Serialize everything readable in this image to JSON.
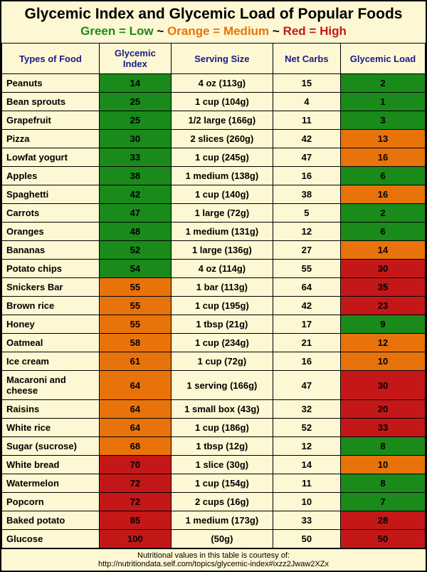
{
  "title": "Glycemic Index and Glycemic Load of Popular Foods",
  "legend": {
    "green": "Green = Low",
    "orange": "Orange = Medium",
    "red": "Red = High",
    "sep": "~"
  },
  "columns": [
    {
      "label": "Types of Food",
      "width": "23%"
    },
    {
      "label": "Glycemic Index",
      "width": "17%"
    },
    {
      "label": "Serving Size",
      "width": "24%"
    },
    {
      "label": "Net Carbs",
      "width": "16%"
    },
    {
      "label": "Glycemic Load",
      "width": "20%"
    }
  ],
  "colors": {
    "green": "#1a8a1a",
    "orange": "#e8730b",
    "red": "#c41818",
    "cream": "#fdf8d3",
    "header_text": "#1a1a8a"
  },
  "rows": [
    {
      "name": "Peanuts",
      "gi": 14,
      "gi_color": "green",
      "serving": "4 oz (113g)",
      "carbs": 15,
      "gl": 2,
      "gl_color": "green"
    },
    {
      "name": "Bean sprouts",
      "gi": 25,
      "gi_color": "green",
      "serving": "1 cup (104g)",
      "carbs": 4,
      "gl": 1,
      "gl_color": "green"
    },
    {
      "name": "Grapefruit",
      "gi": 25,
      "gi_color": "green",
      "serving": "1/2 large (166g)",
      "carbs": 11,
      "gl": 3,
      "gl_color": "green"
    },
    {
      "name": "Pizza",
      "gi": 30,
      "gi_color": "green",
      "serving": "2 slices (260g)",
      "carbs": 42,
      "gl": 13,
      "gl_color": "orange"
    },
    {
      "name": "Lowfat yogurt",
      "gi": 33,
      "gi_color": "green",
      "serving": "1 cup (245g)",
      "carbs": 47,
      "gl": 16,
      "gl_color": "orange"
    },
    {
      "name": "Apples",
      "gi": 38,
      "gi_color": "green",
      "serving": "1 medium (138g)",
      "carbs": 16,
      "gl": 6,
      "gl_color": "green"
    },
    {
      "name": "Spaghetti",
      "gi": 42,
      "gi_color": "green",
      "serving": "1 cup (140g)",
      "carbs": 38,
      "gl": 16,
      "gl_color": "orange"
    },
    {
      "name": "Carrots",
      "gi": 47,
      "gi_color": "green",
      "serving": "1 large (72g)",
      "carbs": 5,
      "gl": 2,
      "gl_color": "green"
    },
    {
      "name": "Oranges",
      "gi": 48,
      "gi_color": "green",
      "serving": "1 medium (131g)",
      "carbs": 12,
      "gl": 6,
      "gl_color": "green"
    },
    {
      "name": "Bananas",
      "gi": 52,
      "gi_color": "green",
      "serving": "1 large (136g)",
      "carbs": 27,
      "gl": 14,
      "gl_color": "orange"
    },
    {
      "name": "Potato chips",
      "gi": 54,
      "gi_color": "green",
      "serving": "4 oz (114g)",
      "carbs": 55,
      "gl": 30,
      "gl_color": "red"
    },
    {
      "name": "Snickers Bar",
      "gi": 55,
      "gi_color": "orange",
      "serving": "1 bar (113g)",
      "carbs": 64,
      "gl": 35,
      "gl_color": "red"
    },
    {
      "name": "Brown rice",
      "gi": 55,
      "gi_color": "orange",
      "serving": "1 cup (195g)",
      "carbs": 42,
      "gl": 23,
      "gl_color": "red"
    },
    {
      "name": "Honey",
      "gi": 55,
      "gi_color": "orange",
      "serving": "1 tbsp (21g)",
      "carbs": 17,
      "gl": 9,
      "gl_color": "green"
    },
    {
      "name": "Oatmeal",
      "gi": 58,
      "gi_color": "orange",
      "serving": "1 cup (234g)",
      "carbs": 21,
      "gl": 12,
      "gl_color": "orange"
    },
    {
      "name": "Ice cream",
      "gi": 61,
      "gi_color": "orange",
      "serving": "1 cup (72g)",
      "carbs": 16,
      "gl": 10,
      "gl_color": "orange"
    },
    {
      "name": "Macaroni and cheese",
      "gi": 64,
      "gi_color": "orange",
      "serving": "1 serving (166g)",
      "carbs": 47,
      "gl": 30,
      "gl_color": "red"
    },
    {
      "name": "Raisins",
      "gi": 64,
      "gi_color": "orange",
      "serving": "1 small box (43g)",
      "carbs": 32,
      "gl": 20,
      "gl_color": "red"
    },
    {
      "name": "White rice",
      "gi": 64,
      "gi_color": "orange",
      "serving": "1 cup (186g)",
      "carbs": 52,
      "gl": 33,
      "gl_color": "red"
    },
    {
      "name": "Sugar (sucrose)",
      "gi": 68,
      "gi_color": "orange",
      "serving": "1 tbsp (12g)",
      "carbs": 12,
      "gl": 8,
      "gl_color": "green"
    },
    {
      "name": "White bread",
      "gi": 70,
      "gi_color": "red",
      "serving": "1 slice (30g)",
      "carbs": 14,
      "gl": 10,
      "gl_color": "orange"
    },
    {
      "name": "Watermelon",
      "gi": 72,
      "gi_color": "red",
      "serving": "1 cup (154g)",
      "carbs": 11,
      "gl": 8,
      "gl_color": "green"
    },
    {
      "name": "Popcorn",
      "gi": 72,
      "gi_color": "red",
      "serving": "2 cups (16g)",
      "carbs": 10,
      "gl": 7,
      "gl_color": "green"
    },
    {
      "name": "Baked potato",
      "gi": 85,
      "gi_color": "red",
      "serving": "1 medium (173g)",
      "carbs": 33,
      "gl": 28,
      "gl_color": "red"
    },
    {
      "name": "Glucose",
      "gi": 100,
      "gi_color": "red",
      "serving": "(50g)",
      "carbs": 50,
      "gl": 50,
      "gl_color": "red"
    }
  ],
  "footer": {
    "line1": "Nutritional values in this table is courtesy of:",
    "line2": "http://nutritiondata.self.com/topics/glycemic-index#ixzz2Jwaw2XZx"
  }
}
